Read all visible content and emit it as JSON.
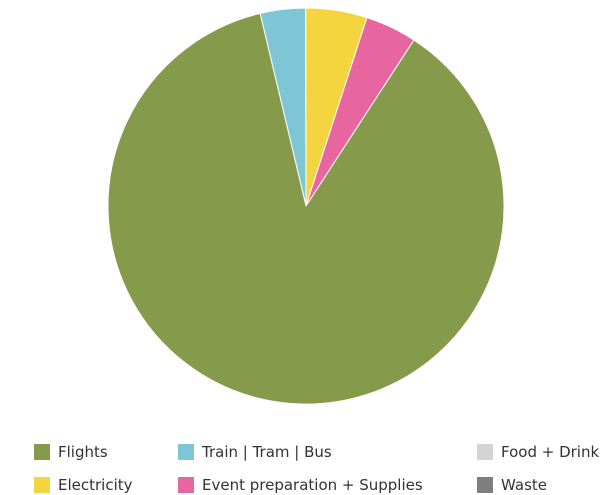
{
  "chart_data": {
    "type": "pie",
    "categories": [
      "Flights",
      "Train | Tram | Bus",
      "Food + Drink",
      "Electricity",
      "Event preparation + Supplies",
      "Waste"
    ],
    "values": [
      87.1,
      3.7,
      0,
      5.0,
      4.2,
      0
    ],
    "slice_order": [
      "Train | Tram | Bus",
      "Electricity",
      "Event preparation + Supplies",
      "Flights"
    ],
    "start_angle_deg": -13.4,
    "legend_position": "bottom",
    "colors": {
      "Flights": "#869a4b",
      "Train | Tram | Bus": "#7ec6d6",
      "Food + Drink": "#d4d4d4",
      "Electricity": "#f5d53f",
      "Event preparation + Supplies": "#e8669f",
      "Waste": "#7f7f7f"
    },
    "slice_border_color": "#ffffff"
  }
}
